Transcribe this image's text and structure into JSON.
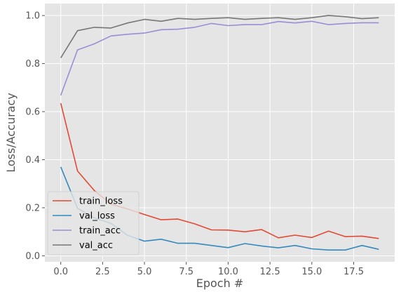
{
  "chart_data": {
    "type": "line",
    "xlabel": "Epoch #",
    "ylabel": "Loss/Accuracy",
    "xlim": [
      -0.95,
      19.95
    ],
    "ylim": [
      -0.025,
      1.05
    ],
    "x_ticks": [
      0.0,
      2.5,
      5.0,
      7.5,
      10.0,
      12.5,
      15.0,
      17.5
    ],
    "y_ticks": [
      0.0,
      0.2,
      0.4,
      0.6,
      0.8,
      1.0
    ],
    "x_tick_labels": [
      "0.0",
      "2.5",
      "5.0",
      "7.5",
      "10.0",
      "12.5",
      "15.0",
      "17.5"
    ],
    "y_tick_labels": [
      "0.0",
      "0.2",
      "0.4",
      "0.6",
      "0.8",
      "1.0"
    ],
    "grid": true,
    "legend_position": "lower-left",
    "x": [
      0,
      1,
      2,
      3,
      4,
      5,
      6,
      7,
      8,
      9,
      10,
      11,
      12,
      13,
      14,
      15,
      16,
      17,
      18,
      19
    ],
    "series": [
      {
        "name": "train_loss",
        "color": "#E24A33",
        "values": [
          0.635,
          0.353,
          0.272,
          0.215,
          0.195,
          0.172,
          0.15,
          0.153,
          0.133,
          0.108,
          0.107,
          0.1,
          0.109,
          0.075,
          0.086,
          0.076,
          0.103,
          0.08,
          0.082,
          0.072
        ]
      },
      {
        "name": "val_loss",
        "color": "#348ABD",
        "values": [
          0.37,
          0.198,
          0.158,
          0.135,
          0.085,
          0.061,
          0.069,
          0.052,
          0.052,
          0.043,
          0.034,
          0.051,
          0.041,
          0.033,
          0.043,
          0.029,
          0.024,
          0.024,
          0.043,
          0.027
        ]
      },
      {
        "name": "train_acc",
        "color": "#988ED5",
        "values": [
          0.668,
          0.857,
          0.882,
          0.915,
          0.922,
          0.927,
          0.941,
          0.943,
          0.951,
          0.967,
          0.958,
          0.962,
          0.962,
          0.975,
          0.969,
          0.976,
          0.962,
          0.967,
          0.97,
          0.97
        ]
      },
      {
        "name": "val_acc",
        "color": "#777777",
        "values": [
          0.824,
          0.937,
          0.951,
          0.948,
          0.969,
          0.984,
          0.976,
          0.988,
          0.984,
          0.988,
          0.991,
          0.984,
          0.988,
          0.991,
          0.984,
          0.991,
          1.0,
          0.995,
          0.987,
          0.991
        ]
      }
    ]
  }
}
